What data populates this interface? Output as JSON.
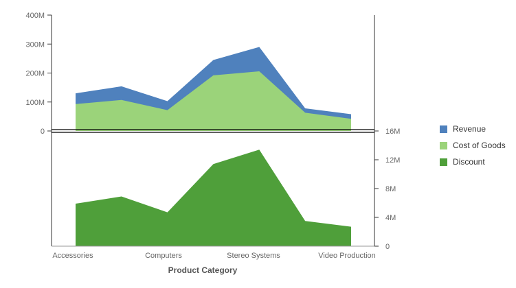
{
  "chart_data": {
    "type": "area",
    "xlabel": "Product Category",
    "categories": [
      "Accessories",
      "",
      "Computers",
      "",
      "Stereo Systems",
      "",
      "Video Production"
    ],
    "top_panel": {
      "ylim": [
        0,
        400
      ],
      "yticks": [
        "0",
        "100M",
        "200M",
        "300M",
        "400M"
      ],
      "series": [
        {
          "name": "Revenue",
          "color": "#4f81bd",
          "values": [
            130,
            154,
            103,
            245,
            290,
            78,
            58
          ]
        },
        {
          "name": "Cost of Goods",
          "color": "#9bd37a",
          "values": [
            93,
            107,
            72,
            192,
            206,
            63,
            42
          ]
        }
      ]
    },
    "bottom_panel": {
      "ylim": [
        0,
        16
      ],
      "yticks": [
        "0",
        "4M",
        "8M",
        "12M",
        "16M"
      ],
      "series": [
        {
          "name": "Discount",
          "color": "#4f9f3a",
          "values": [
            5.9,
            6.9,
            4.7,
            11.4,
            13.4,
            3.5,
            2.7
          ]
        }
      ]
    },
    "legend_position": "right",
    "grid": false
  }
}
